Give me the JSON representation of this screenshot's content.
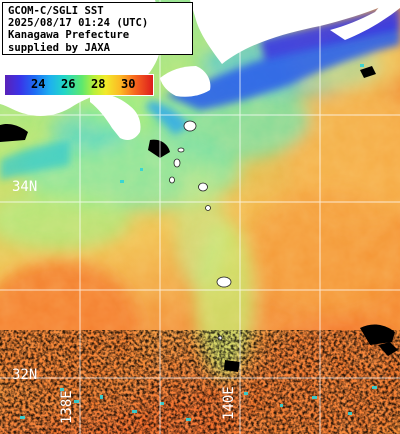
{
  "caption": {
    "lines": [
      "GCOM-C/SGLI SST",
      "2025/08/17 01:24 (UTC)",
      "Kanagawa Prefecture",
      "supplied by JAXA"
    ]
  },
  "legend": {
    "ticks": [
      "24",
      "26",
      "28",
      "30"
    ],
    "tick_colors": [
      "#000000",
      "#000000",
      "#000000",
      "#000000"
    ]
  },
  "grid": {
    "lat_labels": [
      "34N",
      "32N"
    ],
    "lon_labels": [
      "138E",
      "140E"
    ]
  },
  "colors": {
    "land": "#ffffff",
    "grid": "#ffffff",
    "cloud": "#000000",
    "sst_cold": "#2a5ae8",
    "sst_cool": "#34d6c8",
    "sst_mid": "#8ef080",
    "sst_warm": "#f4c048",
    "sst_hot": "#f56a28"
  }
}
